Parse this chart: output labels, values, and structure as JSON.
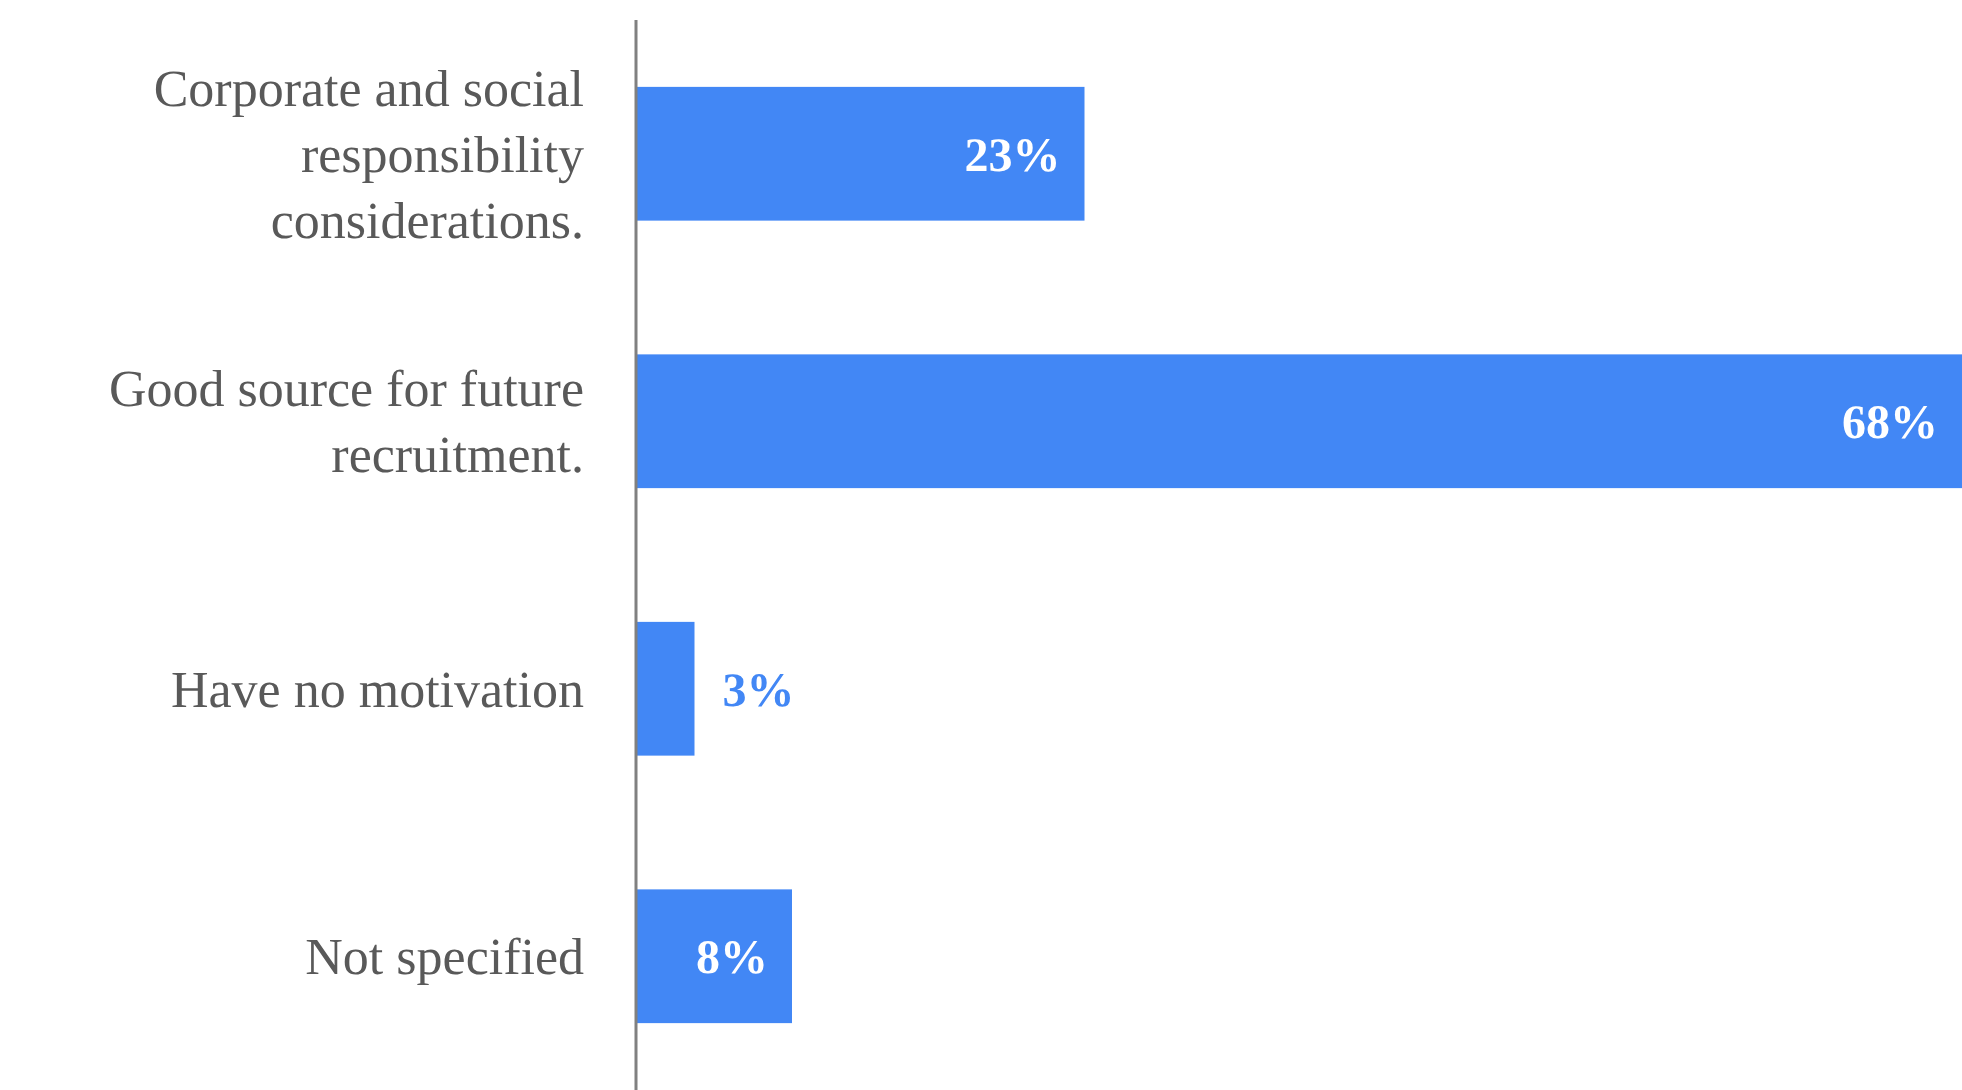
{
  "chart_data": {
    "type": "bar",
    "orientation": "horizontal",
    "categories": [
      "Corporate and social responsibility considerations.",
      "Good source for future recruitment.",
      "Have no motivation",
      "Not specified"
    ],
    "values": [
      23,
      68,
      3,
      8
    ],
    "color": "#4287f5",
    "value_labels": [
      "23%",
      "68%",
      "3%",
      "8%"
    ]
  }
}
